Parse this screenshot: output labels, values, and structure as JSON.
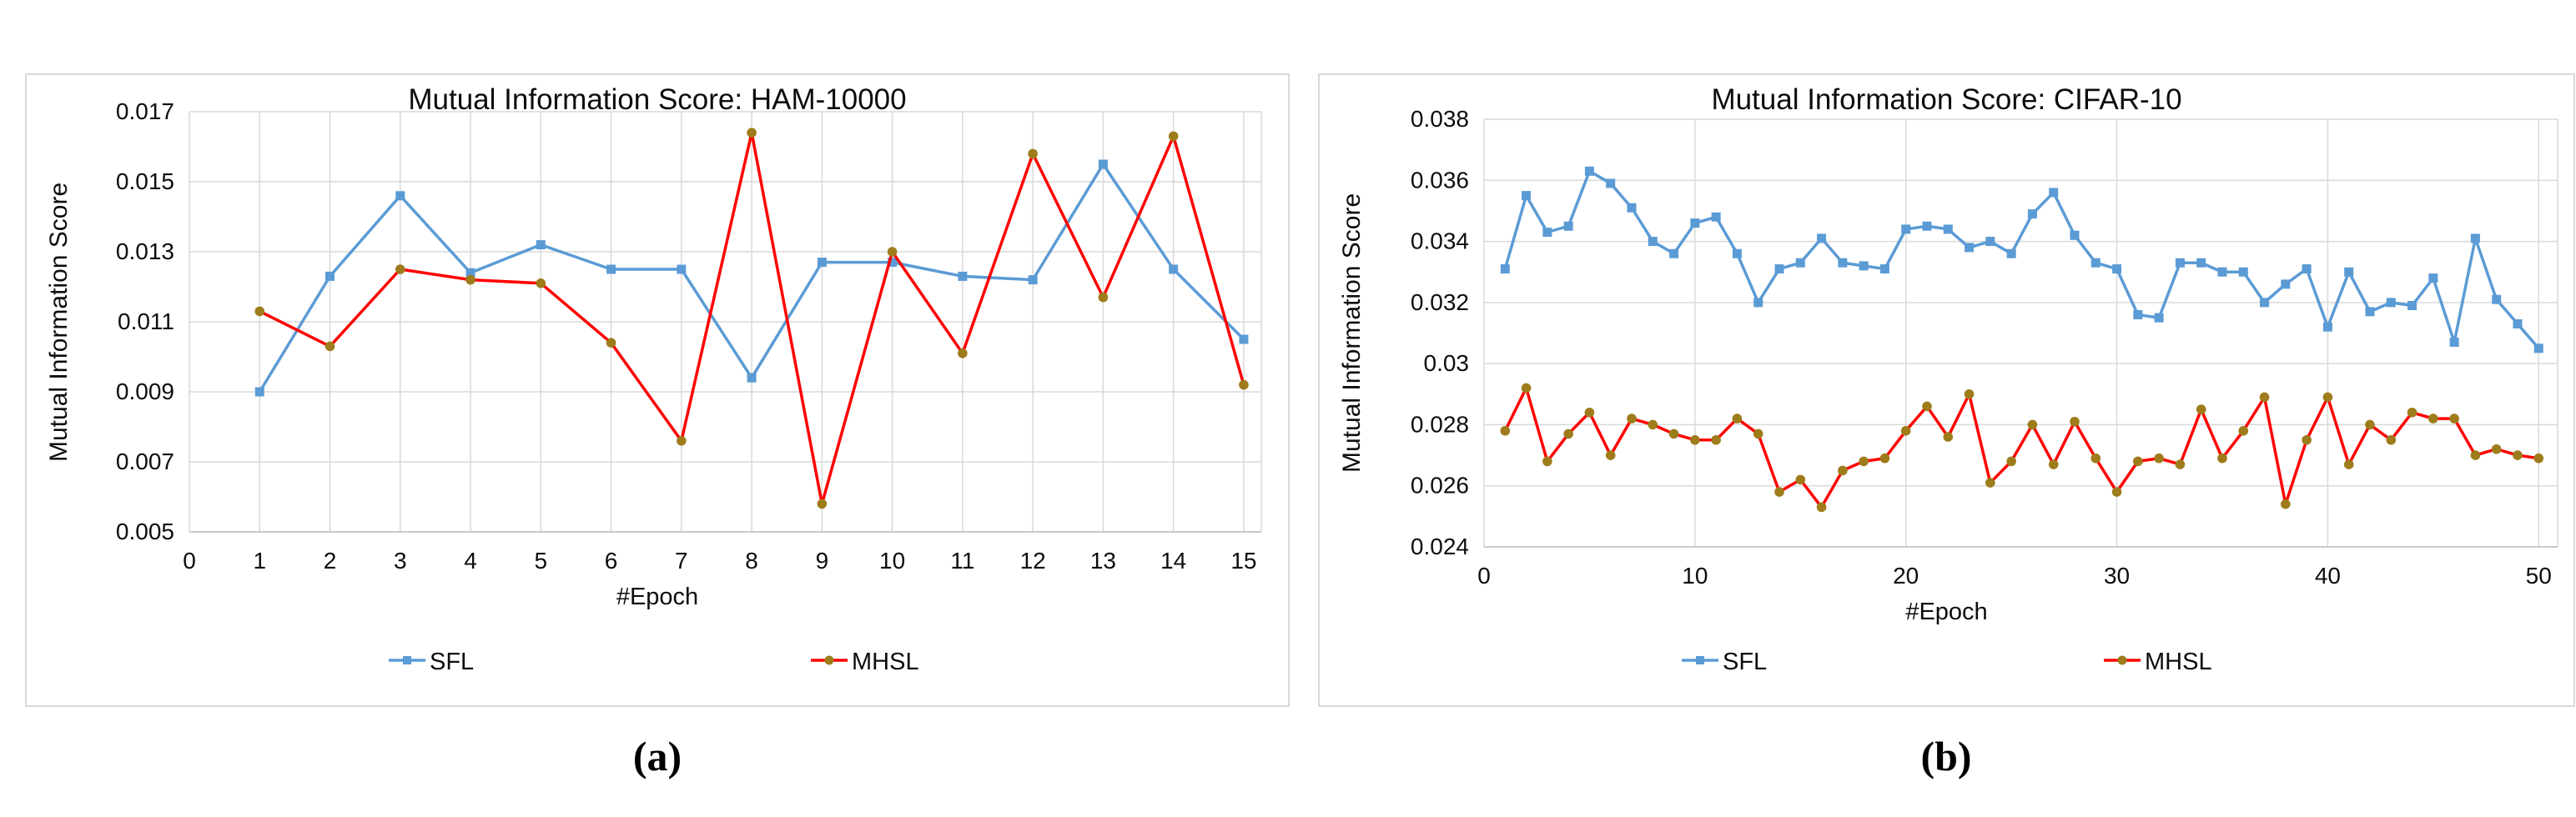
{
  "figure": {
    "caption_a": "(a)",
    "caption_b": "(b)"
  },
  "chart_data": [
    {
      "type": "line",
      "title": "Mutual Information Score: HAM-10000",
      "xlabel": "#Epoch",
      "ylabel": "Mutual Information Score",
      "xlim": [
        0,
        15
      ],
      "ylim": [
        0.005,
        0.017
      ],
      "grid": true,
      "legend_position": "bottom",
      "caption": "(a)",
      "x_ticks": [
        0,
        1,
        2,
        3,
        4,
        5,
        6,
        7,
        8,
        9,
        10,
        11,
        12,
        13,
        14,
        15
      ],
      "x_tick_labels": [
        "0",
        "1",
        "2",
        "3",
        "4",
        "5",
        "6",
        "7",
        "8",
        "9",
        "10",
        "11",
        "12",
        "13",
        "14",
        "15"
      ],
      "y_ticks": [
        0.005,
        0.007,
        0.009,
        0.011,
        0.013,
        0.015,
        0.017
      ],
      "y_tick_labels": [
        "0.005",
        "0.007",
        "0.009",
        "0.011",
        "0.013",
        "0.015",
        "0.017"
      ],
      "x": [
        1,
        2,
        3,
        4,
        5,
        6,
        7,
        8,
        9,
        10,
        11,
        12,
        13,
        14,
        15
      ],
      "series": [
        {
          "name": "SFL",
          "color": "#5b9bd5",
          "marker": "square",
          "marker_color": "#5b9bd5",
          "values": [
            0.009,
            0.0123,
            0.0146,
            0.0124,
            0.0132,
            0.0125,
            0.0125,
            0.0094,
            0.0127,
            0.0127,
            0.0123,
            0.0122,
            0.0155,
            0.0125,
            0.0105
          ]
        },
        {
          "name": "MHSL",
          "color": "#ff0000",
          "marker": "circle",
          "marker_color": "#9e7c1b",
          "values": [
            0.0113,
            0.0103,
            0.0125,
            0.0122,
            0.0121,
            0.0104,
            0.0076,
            0.0164,
            0.0058,
            0.013,
            0.0101,
            0.0158,
            0.0117,
            0.0163,
            0.0092
          ]
        }
      ]
    },
    {
      "type": "line",
      "title": "Mutual Information Score: CIFAR-10",
      "xlabel": "#Epoch",
      "ylabel": "Mutual Information Score",
      "xlim": [
        0,
        50
      ],
      "ylim": [
        0.024,
        0.038
      ],
      "grid": true,
      "legend_position": "bottom",
      "caption": "(b)",
      "x_ticks": [
        0,
        10,
        20,
        30,
        40,
        50
      ],
      "x_tick_labels": [
        "0",
        "10",
        "20",
        "30",
        "40",
        "50"
      ],
      "y_ticks": [
        0.024,
        0.026,
        0.028,
        0.03,
        0.032,
        0.034,
        0.036,
        0.038
      ],
      "y_tick_labels": [
        "0.024",
        "0.026",
        "0.028",
        "0.03",
        "0.032",
        "0.034",
        "0.036",
        "0.038"
      ],
      "x": [
        1,
        2,
        3,
        4,
        5,
        6,
        7,
        8,
        9,
        10,
        11,
        12,
        13,
        14,
        15,
        16,
        17,
        18,
        19,
        20,
        21,
        22,
        23,
        24,
        25,
        26,
        27,
        28,
        29,
        30,
        31,
        32,
        33,
        34,
        35,
        36,
        37,
        38,
        39,
        40,
        41,
        42,
        43,
        44,
        45,
        46,
        47,
        48,
        49,
        50
      ],
      "series": [
        {
          "name": "SFL",
          "color": "#5b9bd5",
          "marker": "square",
          "marker_color": "#5b9bd5",
          "values": [
            0.0331,
            0.0355,
            0.0343,
            0.0345,
            0.0363,
            0.0359,
            0.0351,
            0.034,
            0.0336,
            0.0346,
            0.0348,
            0.0336,
            0.032,
            0.0331,
            0.0333,
            0.0341,
            0.0333,
            0.0332,
            0.0331,
            0.0344,
            0.0345,
            0.0344,
            0.0338,
            0.034,
            0.0336,
            0.0349,
            0.0356,
            0.0342,
            0.0333,
            0.0331,
            0.0316,
            0.0315,
            0.0333,
            0.0333,
            0.033,
            0.033,
            0.032,
            0.0326,
            0.0331,
            0.0312,
            0.033,
            0.0317,
            0.032,
            0.0319,
            0.0328,
            0.0307,
            0.0341,
            0.0321,
            0.0313,
            0.0305
          ]
        },
        {
          "name": "MHSL",
          "color": "#ff0000",
          "marker": "circle",
          "marker_color": "#9e7c1b",
          "values": [
            0.0278,
            0.0292,
            0.0268,
            0.0277,
            0.0284,
            0.027,
            0.0282,
            0.028,
            0.0277,
            0.0275,
            0.0275,
            0.0282,
            0.0277,
            0.0258,
            0.0262,
            0.0253,
            0.0265,
            0.0268,
            0.0269,
            0.0278,
            0.0286,
            0.0276,
            0.029,
            0.0261,
            0.0268,
            0.028,
            0.0267,
            0.0281,
            0.0269,
            0.0258,
            0.0268,
            0.0269,
            0.0267,
            0.0285,
            0.0269,
            0.0278,
            0.0289,
            0.0254,
            0.0275,
            0.0289,
            0.0267,
            0.028,
            0.0275,
            0.0284,
            0.0282,
            0.0282,
            0.027,
            0.0272,
            0.027,
            0.0269
          ]
        }
      ]
    }
  ]
}
